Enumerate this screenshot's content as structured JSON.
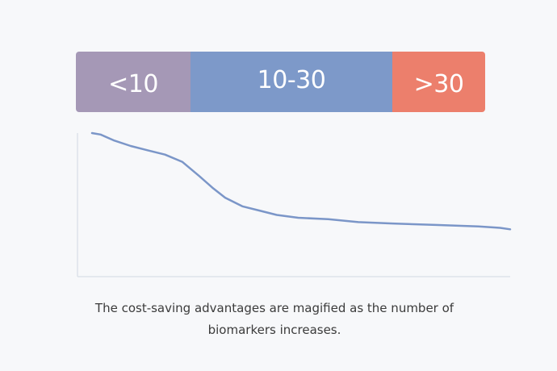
{
  "bands": [
    {
      "label": "<10",
      "color": "#a598b6"
    },
    {
      "label": "10-30",
      "color": "#7d99c9"
    },
    {
      "label": ">30",
      "color": "#ec7f6c"
    }
  ],
  "caption": {
    "line1": "The cost-saving advantages are magified as the number of",
    "line2": "biomarkers increases."
  },
  "chart_data": {
    "type": "line",
    "title": "",
    "xlabel": "",
    "ylabel": "",
    "grid": false,
    "legend": "none",
    "xlim": [
      0,
      100
    ],
    "ylim": [
      0,
      100
    ],
    "line_color": "#7b96c8",
    "axis_color": "#dde3ea",
    "series": [
      {
        "x": [
          0,
          2,
          5,
          9,
          13,
          17,
          21,
          25,
          28,
          31,
          35,
          39,
          43,
          48,
          55,
          62,
          70,
          80,
          90,
          95,
          100
        ],
        "y": [
          100,
          99,
          95,
          91,
          88,
          85,
          80,
          70,
          62,
          55,
          49,
          46,
          43,
          41,
          40,
          38,
          37,
          36,
          35,
          34,
          33
        ]
      }
    ]
  }
}
